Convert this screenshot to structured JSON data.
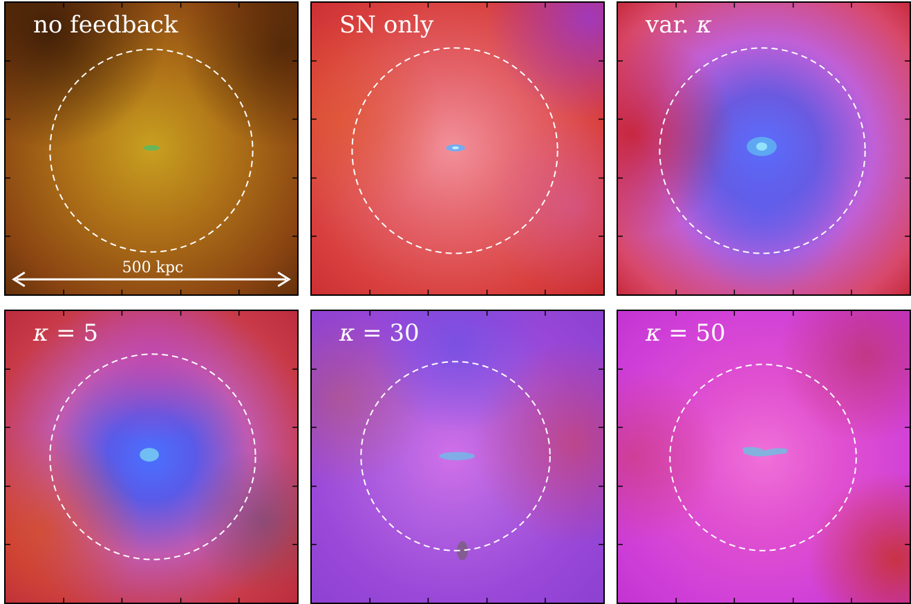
{
  "panels": [
    {
      "id": "no-feedback",
      "label": "no feedback",
      "palette": {
        "base": "#8a3a10",
        "mid": "#a86a18",
        "core": "#c89a20",
        "accent": "#5a2a08"
      },
      "scale_label": "500 kpc"
    },
    {
      "id": "sn-only",
      "label": "SN only",
      "palette": {
        "base": "#d8363a",
        "mid": "#e65a6e",
        "core": "#f08090",
        "accent": "#b82a6a"
      }
    },
    {
      "id": "var-kappa",
      "label_prefix": "var. ",
      "label_symbol": "κ",
      "palette": {
        "base": "#d83a58",
        "mid": "#c060d0",
        "core": "#4a58e8",
        "accent": "#c8202a"
      }
    },
    {
      "id": "kappa-5",
      "label_symbol": "κ",
      "label_suffix": " = 5",
      "palette": {
        "base": "#c83040",
        "mid": "#c85aa8",
        "core": "#4a60f0",
        "accent": "#d05020"
      }
    },
    {
      "id": "kappa-30",
      "label_symbol": "κ",
      "label_suffix": " = 30",
      "palette": {
        "base": "#9a40d8",
        "mid": "#c060e0",
        "core": "#5a50e8",
        "accent": "#d04060"
      }
    },
    {
      "id": "kappa-50",
      "label_symbol": "κ",
      "label_suffix": " = 50",
      "palette": {
        "base": "#c828e0",
        "mid": "#e048c8",
        "core": "#f060d0",
        "accent": "#c83030"
      }
    }
  ],
  "colors": {
    "circle": "#ffffff",
    "frame": "#000000",
    "scale_arrow": "#ffffff"
  }
}
